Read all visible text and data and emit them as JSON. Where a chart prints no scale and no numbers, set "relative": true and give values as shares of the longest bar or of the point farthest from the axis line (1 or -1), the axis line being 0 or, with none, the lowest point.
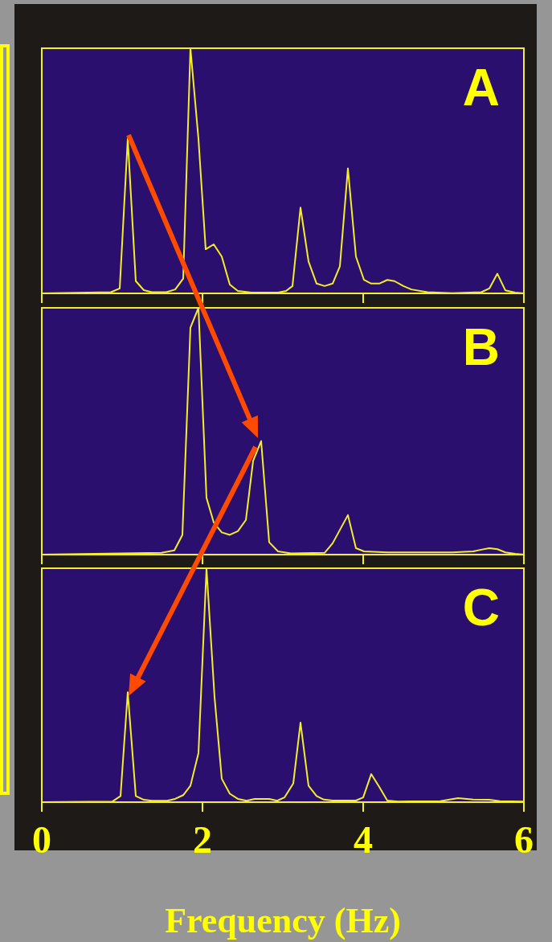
{
  "chart_data": [
    {
      "type": "line",
      "title": "A",
      "relative": true,
      "xlim": [
        0,
        6
      ],
      "xticks": [
        0,
        2,
        4,
        6
      ],
      "tick_labels": false,
      "marker": "none",
      "series": [
        {
          "color": "#f2ee2a",
          "x": [
            0,
            0.86,
            0.97,
            1.07,
            1.17,
            1.27,
            1.37,
            1.55,
            1.66,
            1.76,
            1.85,
            1.95,
            2.04,
            2.14,
            2.24,
            2.34,
            2.44,
            2.61,
            2.94,
            3.04,
            3.12,
            3.22,
            3.32,
            3.42,
            3.52,
            3.62,
            3.71,
            3.81,
            3.91,
            4.01,
            4.1,
            4.2,
            4.3,
            4.39,
            4.5,
            4.6,
            4.8,
            5.11,
            5.47,
            5.57,
            5.67,
            5.77,
            5.89,
            6
          ],
          "values": [
            0,
            0.005,
            0.02,
            0.63,
            0.05,
            0.013,
            0.005,
            0.005,
            0.016,
            0.06,
            1,
            0.63,
            0.18,
            0.2,
            0.15,
            0.036,
            0.01,
            0.003,
            0.003,
            0.01,
            0.03,
            0.35,
            0.13,
            0.04,
            0.03,
            0.04,
            0.11,
            0.51,
            0.15,
            0.055,
            0.04,
            0.04,
            0.055,
            0.05,
            0.03,
            0.016,
            0.005,
            0.001,
            0.005,
            0.02,
            0.08,
            0.012,
            0.003,
            0
          ]
        }
      ]
    },
    {
      "type": "line",
      "title": "B",
      "relative": true,
      "xlim": [
        0,
        6
      ],
      "xticks": [
        0,
        2,
        4,
        6
      ],
      "tick_labels": false,
      "marker": "none",
      "series": [
        {
          "color": "#f2ee2a",
          "x": [
            0,
            1.49,
            1.65,
            1.75,
            1.85,
            1.95,
            2.05,
            2.14,
            2.24,
            2.34,
            2.44,
            2.54,
            2.63,
            2.73,
            2.83,
            2.94,
            3.1,
            3.52,
            3.62,
            3.81,
            3.91,
            4.01,
            4.3,
            5.11,
            5.37,
            5.47,
            5.57,
            5.67,
            5.77,
            5.89,
            6
          ],
          "values": [
            0,
            0.007,
            0.017,
            0.08,
            0.92,
            1,
            0.23,
            0.13,
            0.09,
            0.08,
            0.095,
            0.14,
            0.38,
            0.46,
            0.05,
            0.013,
            0.005,
            0.007,
            0.046,
            0.16,
            0.026,
            0.013,
            0.009,
            0.009,
            0.013,
            0.02,
            0.026,
            0.022,
            0.009,
            0.003,
            0
          ]
        }
      ]
    },
    {
      "type": "line",
      "title": "C",
      "xlabel": "Frequency (Hz)",
      "relative": true,
      "xlim": [
        0,
        6
      ],
      "xticks": [
        0,
        2,
        4,
        6
      ],
      "tick_labels": "x",
      "marker": "none",
      "series": [
        {
          "color": "#f2ee2a",
          "x": [
            0,
            0.88,
            0.98,
            1.07,
            1.17,
            1.27,
            1.37,
            1.56,
            1.66,
            1.76,
            1.85,
            1.95,
            2.05,
            2.15,
            2.24,
            2.34,
            2.44,
            2.55,
            2.65,
            2.83,
            2.93,
            3.02,
            3.13,
            3.22,
            3.32,
            3.42,
            3.51,
            3.62,
            3.91,
            4.0,
            4.1,
            4.2,
            4.3,
            4.43,
            4.96,
            5.18,
            5.37,
            5.57,
            5.7,
            6
          ],
          "values": [
            0,
            0.003,
            0.026,
            0.47,
            0.026,
            0.01,
            0.006,
            0.006,
            0.014,
            0.03,
            0.07,
            0.21,
            1,
            0.45,
            0.1,
            0.036,
            0.014,
            0.006,
            0.014,
            0.014,
            0.006,
            0.02,
            0.08,
            0.34,
            0.07,
            0.026,
            0.011,
            0.007,
            0.007,
            0.02,
            0.12,
            0.065,
            0.007,
            0.003,
            0.004,
            0.017,
            0.011,
            0.01,
            0.004,
            0.003
          ]
        }
      ]
    }
  ]
}
